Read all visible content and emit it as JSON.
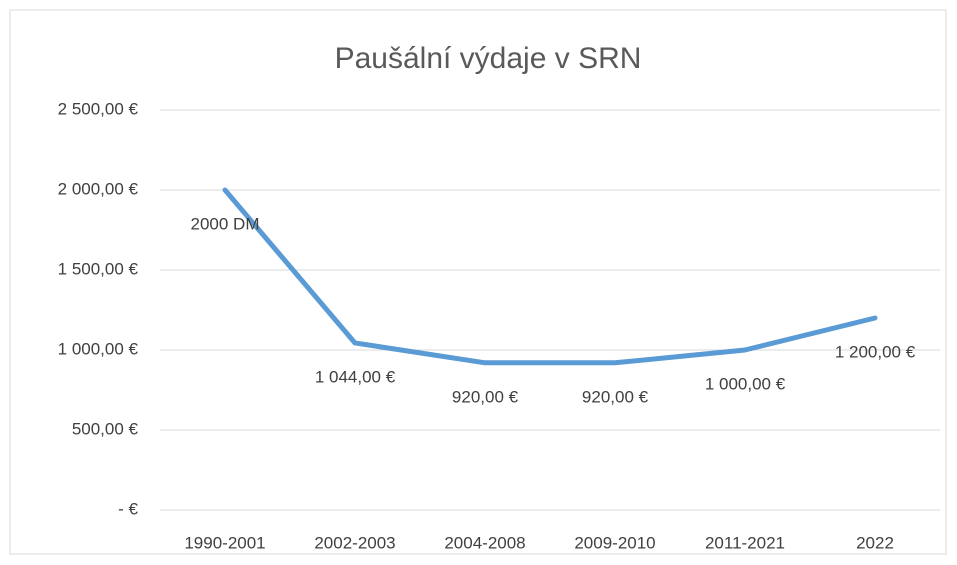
{
  "chart_data": {
    "type": "line",
    "title": "Paušální výdaje v SRN",
    "categories": [
      "1990-2001",
      "2002-2003",
      "2004-2008",
      "2009-2010",
      "2011-2021",
      "2022"
    ],
    "series": [
      {
        "color": "#5b9bd5",
        "values": [
          2000,
          1044,
          920,
          920,
          1000,
          1200
        ],
        "value_labels": [
          "2000 DM",
          "1 044,00 €",
          "920,00 €",
          "920,00 €",
          "1 000,00 €",
          "1 200,00 €"
        ]
      }
    ],
    "ylim": [
      0,
      2500
    ],
    "yticks": [
      {
        "value": 0,
        "label": "-   €"
      },
      {
        "value": 500,
        "label": "500,00 €"
      },
      {
        "value": 1000,
        "label": "1 000,00 €"
      },
      {
        "value": 1500,
        "label": "1 500,00 €"
      },
      {
        "value": 2000,
        "label": "2 000,00 €"
      },
      {
        "value": 2500,
        "label": "2 500,00 €"
      }
    ],
    "grid": true
  }
}
